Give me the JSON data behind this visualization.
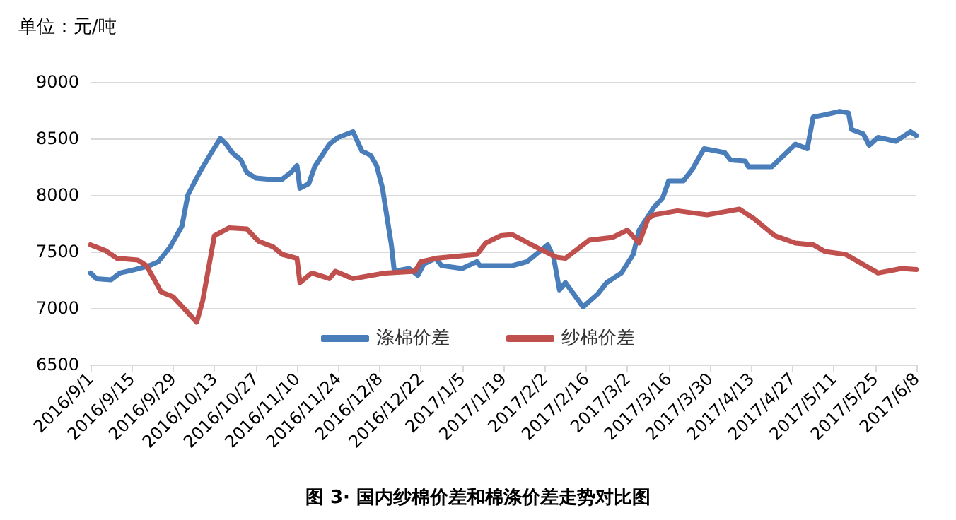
{
  "chart_data": {
    "type": "line",
    "title": "图 3· 国内纱棉价差和棉涤价差走势对比图",
    "ylabel": "单位：元/吨",
    "xlim": [
      "2016-09-01",
      "2017-06-08"
    ],
    "xticks": [
      {
        "value": "2016-09-01",
        "label": "2016/9/1"
      },
      {
        "value": "2016-09-15",
        "label": "2016/9/15"
      },
      {
        "value": "2016-09-29",
        "label": "2016/9/29"
      },
      {
        "value": "2016-10-13",
        "label": "2016/10/13"
      },
      {
        "value": "2016-10-27",
        "label": "2016/10/27"
      },
      {
        "value": "2016-11-10",
        "label": "2016/11/10"
      },
      {
        "value": "2016-11-24",
        "label": "2016/11/24"
      },
      {
        "value": "2016-12-08",
        "label": "2016/12/8"
      },
      {
        "value": "2016-12-22",
        "label": "2016/12/22"
      },
      {
        "value": "2017-01-05",
        "label": "2017/1/5"
      },
      {
        "value": "2017-01-19",
        "label": "2017/1/19"
      },
      {
        "value": "2017-02-02",
        "label": "2017/2/2"
      },
      {
        "value": "2017-02-16",
        "label": "2017/2/16"
      },
      {
        "value": "2017-03-02",
        "label": "2017/3/2"
      },
      {
        "value": "2017-03-16",
        "label": "2017/3/16"
      },
      {
        "value": "2017-03-30",
        "label": "2017/3/30"
      },
      {
        "value": "2017-04-13",
        "label": "2017/4/13"
      },
      {
        "value": "2017-04-27",
        "label": "2017/4/27"
      },
      {
        "value": "2017-05-11",
        "label": "2017/5/11"
      },
      {
        "value": "2017-05-25",
        "label": "2017/5/25"
      },
      {
        "value": "2017-06-08",
        "label": "2017/6/8"
      }
    ],
    "ylim": [
      6500,
      9000
    ],
    "yticks": [
      6500,
      7000,
      7500,
      8000,
      8500,
      9000
    ],
    "grid": "y",
    "legend": "bottom",
    "marker": "none",
    "line_style": "solid",
    "series": [
      {
        "name": "涤棉价差",
        "color": "#4a7ebb",
        "x": [
          "2016-09-01",
          "2016-09-03",
          "2016-09-08",
          "2016-09-11",
          "2016-09-16",
          "2016-09-21",
          "2016-09-24",
          "2016-09-28",
          "2016-10-02",
          "2016-10-04",
          "2016-10-08",
          "2016-10-12",
          "2016-10-15",
          "2016-10-17",
          "2016-10-19",
          "2016-10-22",
          "2016-10-24",
          "2016-10-27",
          "2016-10-31",
          "2016-11-05",
          "2016-11-08",
          "2016-11-10",
          "2016-11-11",
          "2016-11-14",
          "2016-11-16",
          "2016-11-21",
          "2016-11-24",
          "2016-11-29",
          "2016-12-02",
          "2016-12-05",
          "2016-12-07",
          "2016-12-09",
          "2016-12-10",
          "2016-12-12",
          "2016-12-13",
          "2016-12-18",
          "2016-12-21",
          "2016-12-23",
          "2016-12-27",
          "2016-12-29",
          "2017-01-05",
          "2017-01-10",
          "2017-01-11",
          "2017-01-22",
          "2017-01-27",
          "2017-02-03",
          "2017-02-05",
          "2017-02-07",
          "2017-02-09",
          "2017-02-15",
          "2017-02-20",
          "2017-02-23",
          "2017-02-28",
          "2017-03-04",
          "2017-03-06",
          "2017-03-11",
          "2017-03-14",
          "2017-03-16",
          "2017-03-21",
          "2017-03-24",
          "2017-03-28",
          "2017-04-04",
          "2017-04-06",
          "2017-04-11",
          "2017-04-12",
          "2017-04-20",
          "2017-04-23",
          "2017-04-28",
          "2017-05-02",
          "2017-05-04",
          "2017-05-08",
          "2017-05-13",
          "2017-05-16",
          "2017-05-17",
          "2017-05-21",
          "2017-05-23",
          "2017-05-26",
          "2017-06-01",
          "2017-06-06",
          "2017-06-08"
        ],
        "values": [
          7310,
          7260,
          7250,
          7310,
          7340,
          7375,
          7410,
          7540,
          7725,
          8000,
          8200,
          8375,
          8500,
          8450,
          8375,
          8310,
          8200,
          8150,
          8140,
          8140,
          8200,
          8260,
          8060,
          8100,
          8250,
          8450,
          8510,
          8560,
          8390,
          8350,
          8260,
          8060,
          7890,
          7560,
          7325,
          7350,
          7290,
          7390,
          7440,
          7375,
          7350,
          7410,
          7375,
          7375,
          7410,
          7560,
          7450,
          7160,
          7225,
          7010,
          7125,
          7225,
          7310,
          7475,
          7690,
          7890,
          7975,
          8125,
          8125,
          8225,
          8410,
          8375,
          8310,
          8300,
          8250,
          8250,
          8325,
          8450,
          8410,
          8690,
          8710,
          8740,
          8725,
          8580,
          8540,
          8440,
          8510,
          8475,
          8560,
          8525
        ]
      },
      {
        "name": "纱棉价差",
        "color": "#c0504d",
        "x": [
          "2016-09-01",
          "2016-09-06",
          "2016-09-10",
          "2016-09-17",
          "2016-09-20",
          "2016-09-25",
          "2016-09-29",
          "2016-10-07",
          "2016-10-09",
          "2016-10-13",
          "2016-10-18",
          "2016-10-24",
          "2016-10-28",
          "2016-11-02",
          "2016-11-05",
          "2016-11-10",
          "2016-11-11",
          "2016-11-15",
          "2016-11-21",
          "2016-11-23",
          "2016-11-29",
          "2016-12-10",
          "2016-12-20",
          "2016-12-22",
          "2016-12-27",
          "2017-01-10",
          "2017-01-13",
          "2017-01-18",
          "2017-01-22",
          "2017-01-30",
          "2017-02-06",
          "2017-02-09",
          "2017-02-12",
          "2017-02-17",
          "2017-02-25",
          "2017-03-02",
          "2017-03-06",
          "2017-03-09",
          "2017-03-11",
          "2017-03-19",
          "2017-03-29",
          "2017-04-09",
          "2017-04-14",
          "2017-04-21",
          "2017-04-28",
          "2017-05-04",
          "2017-05-08",
          "2017-05-15",
          "2017-05-26",
          "2017-06-03",
          "2017-06-08"
        ],
        "values": [
          7560,
          7510,
          7440,
          7425,
          7375,
          7140,
          7100,
          6875,
          7060,
          7640,
          7710,
          7700,
          7590,
          7540,
          7475,
          7440,
          7225,
          7310,
          7260,
          7325,
          7260,
          7310,
          7325,
          7410,
          7440,
          7475,
          7575,
          7640,
          7650,
          7540,
          7450,
          7440,
          7500,
          7600,
          7625,
          7690,
          7575,
          7790,
          7825,
          7860,
          7825,
          7875,
          7790,
          7640,
          7575,
          7560,
          7500,
          7475,
          7310,
          7350,
          7340
        ]
      }
    ]
  }
}
